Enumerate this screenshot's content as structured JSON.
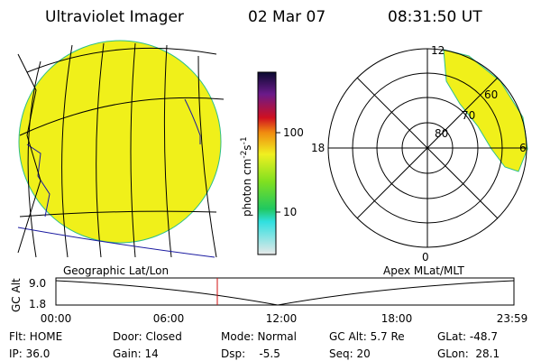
{
  "header": {
    "title": "Ultraviolet Imager",
    "date": "02 Mar 07",
    "time": "08:31:50 UT"
  },
  "colorbar": {
    "unit": "photon cm",
    "unit_exp1": "-2",
    "unit_mid": "s",
    "unit_exp2": "-1",
    "ticks": [
      "100",
      "10"
    ]
  },
  "polar": {
    "mlt_top": "12",
    "mlt_left": "18",
    "mlt_right": "6",
    "mlt_bottom": "0",
    "lat_rings": [
      "80",
      "70",
      "60"
    ]
  },
  "strip": {
    "left_title": "Geographic Lat/Lon",
    "right_title": "Apex MLat/MLT",
    "axis_label": "GC Alt",
    "y_top": "9.0",
    "y_bottom": "1.8",
    "times": [
      "00:00",
      "06:00",
      "12:00",
      "18:00",
      "23:59"
    ]
  },
  "status": [
    [
      "Flt: HOME",
      "Door: Closed",
      "Mode: Normal",
      "GC Alt: 5.7 Re",
      "GLat: -48.7"
    ],
    [
      "IP: 36.0",
      "Gain: 14",
      "Dsp:    -5.5",
      "Seq: 20",
      "GLon:  28.1"
    ]
  ]
}
